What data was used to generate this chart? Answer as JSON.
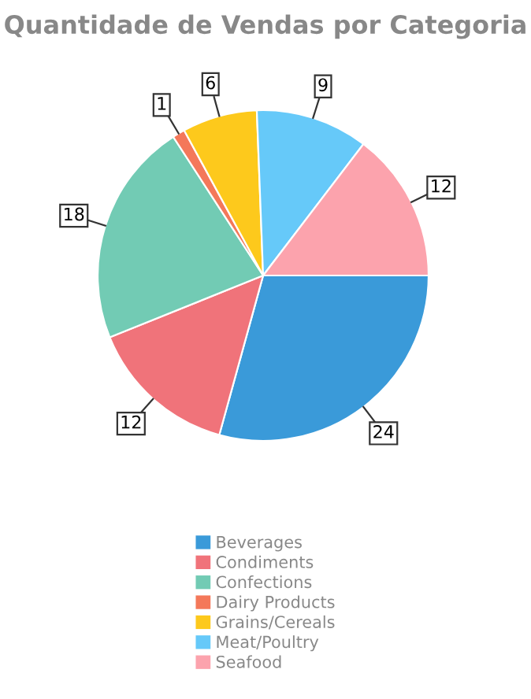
{
  "chart_data": {
    "type": "pie",
    "title": "Quantidade de Vendas por Categoria",
    "categories": [
      "Beverages",
      "Condiments",
      "Confections",
      "Dairy Products",
      "Grains/Cereals",
      "Meat/Poultry",
      "Seafood"
    ],
    "values": [
      24,
      12,
      18,
      1,
      6,
      9,
      12
    ],
    "colors": [
      "#3a9ad9",
      "#f0737a",
      "#72cbb4",
      "#f4785a",
      "#fdc91c",
      "#66c9f9",
      "#fca3ad"
    ],
    "data_labels": true,
    "legend": "bottom"
  }
}
